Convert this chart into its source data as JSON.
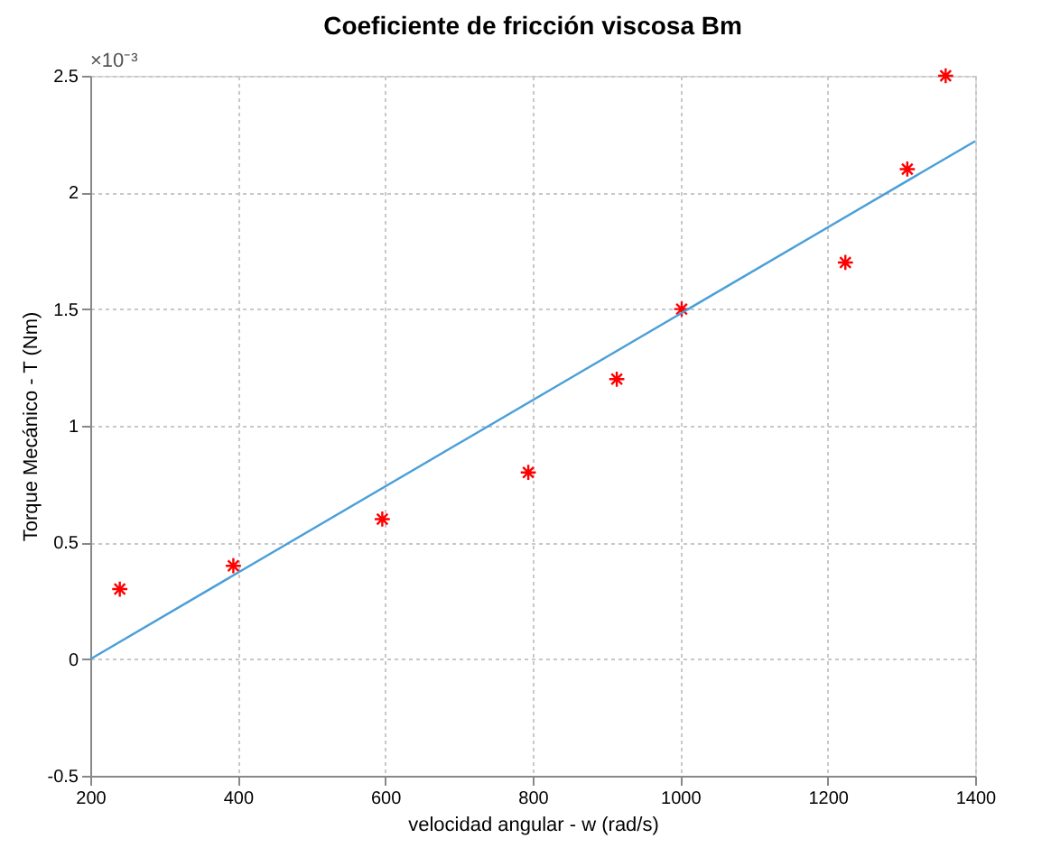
{
  "chart_data": {
    "type": "scatter",
    "title": "Coeficiente de fricción viscosa Bm",
    "xlabel": "velocidad angular - w (rad/s)",
    "ylabel": "Torque Mecánico - T (Nm)",
    "annotations": [
      "×10⁻³"
    ],
    "series": [
      {
        "color": "#ff0000",
        "marker": "cross",
        "x": [
          240,
          394,
          596,
          794,
          914,
          1002,
          1224,
          1308,
          1360
        ],
        "values": [
          0.3,
          0.4,
          0.6,
          0.8,
          1.2,
          1.5,
          1.7,
          2.1,
          2.5
        ]
      },
      {
        "type": "line",
        "color": "#4a9fd8",
        "marker": "none",
        "x": [
          200,
          1400
        ],
        "values": [
          0,
          2.22
        ]
      }
    ],
    "xlim": [
      200,
      1400
    ],
    "xticks": [
      200,
      400,
      600,
      800,
      1000,
      1200,
      1400
    ],
    "ylim": [
      -0.5,
      2.5
    ],
    "yticks": [
      -0.5,
      0,
      0.5,
      1,
      1.5,
      2,
      2.5
    ],
    "grid": true
  }
}
